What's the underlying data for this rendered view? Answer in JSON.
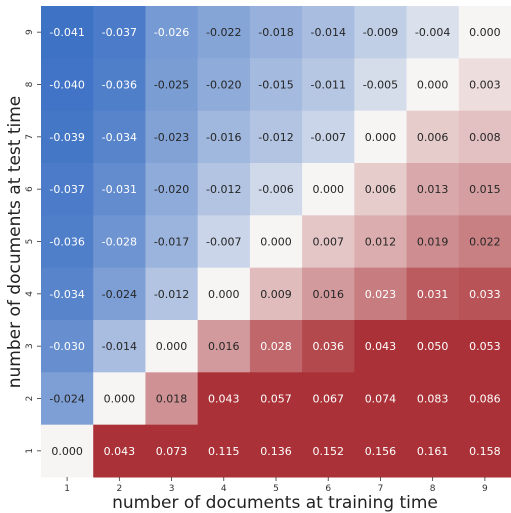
{
  "chart_data": {
    "type": "heatmap",
    "title": "",
    "xlabel": "number of documents at training time",
    "ylabel": "number of documents at test time",
    "x": [
      "1",
      "2",
      "3",
      "4",
      "5",
      "6",
      "7",
      "8",
      "9"
    ],
    "y": [
      "9",
      "8",
      "7",
      "6",
      "5",
      "4",
      "3",
      "2",
      "1"
    ],
    "values": [
      [
        -0.041,
        -0.037,
        -0.026,
        -0.022,
        -0.018,
        -0.014,
        -0.009,
        -0.004,
        0.0
      ],
      [
        -0.04,
        -0.036,
        -0.025,
        -0.02,
        -0.015,
        -0.011,
        -0.005,
        0.0,
        0.003
      ],
      [
        -0.039,
        -0.034,
        -0.023,
        -0.016,
        -0.012,
        -0.007,
        0.0,
        0.006,
        0.008
      ],
      [
        -0.037,
        -0.031,
        -0.02,
        -0.012,
        -0.006,
        0.0,
        0.006,
        0.013,
        0.015
      ],
      [
        -0.036,
        -0.028,
        -0.017,
        -0.007,
        0.0,
        0.007,
        0.012,
        0.019,
        0.022
      ],
      [
        -0.034,
        -0.024,
        -0.012,
        0.0,
        0.009,
        0.016,
        0.023,
        0.031,
        0.033
      ],
      [
        -0.03,
        -0.014,
        0.0,
        0.016,
        0.028,
        0.036,
        0.043,
        0.05,
        0.053
      ],
      [
        -0.024,
        0.0,
        0.018,
        0.043,
        0.057,
        0.067,
        0.074,
        0.083,
        0.086
      ],
      [
        0.0,
        0.043,
        0.073,
        0.115,
        0.136,
        0.152,
        0.156,
        0.161,
        0.158
      ]
    ],
    "labels": [
      [
        "-0.041",
        "-0.037",
        "-0.026",
        "-0.022",
        "-0.018",
        "-0.014",
        "-0.009",
        "-0.004",
        "0.000"
      ],
      [
        "-0.040",
        "-0.036",
        "-0.025",
        "-0.020",
        "-0.015",
        "-0.011",
        "-0.005",
        "0.000",
        "0.003"
      ],
      [
        "-0.039",
        "-0.034",
        "-0.023",
        "-0.016",
        "-0.012",
        "-0.007",
        "0.000",
        "0.006",
        "0.008"
      ],
      [
        "-0.037",
        "-0.031",
        "-0.020",
        "-0.012",
        "-0.006",
        "0.000",
        "0.006",
        "0.013",
        "0.015"
      ],
      [
        "-0.036",
        "-0.028",
        "-0.017",
        "-0.007",
        "0.000",
        "0.007",
        "0.012",
        "0.019",
        "0.022"
      ],
      [
        "-0.034",
        "-0.024",
        "-0.012",
        "0.000",
        "0.009",
        "0.016",
        "0.023",
        "0.031",
        "0.033"
      ],
      [
        "-0.030",
        "-0.014",
        "0.000",
        "0.016",
        "0.028",
        "0.036",
        "0.043",
        "0.050",
        "0.053"
      ],
      [
        "-0.024",
        "0.000",
        "0.018",
        "0.043",
        "0.057",
        "0.067",
        "0.074",
        "0.083",
        "0.086"
      ],
      [
        "0.000",
        "0.043",
        "0.073",
        "0.115",
        "0.136",
        "0.152",
        "0.156",
        "0.161",
        "0.158"
      ]
    ],
    "colormap": {
      "negative": "#3a6fc4",
      "neutral": "#f7f5f4",
      "positive": "#aa3137",
      "vmin": -0.042,
      "vmax": 0.042
    },
    "legend": "none",
    "grid": false
  }
}
